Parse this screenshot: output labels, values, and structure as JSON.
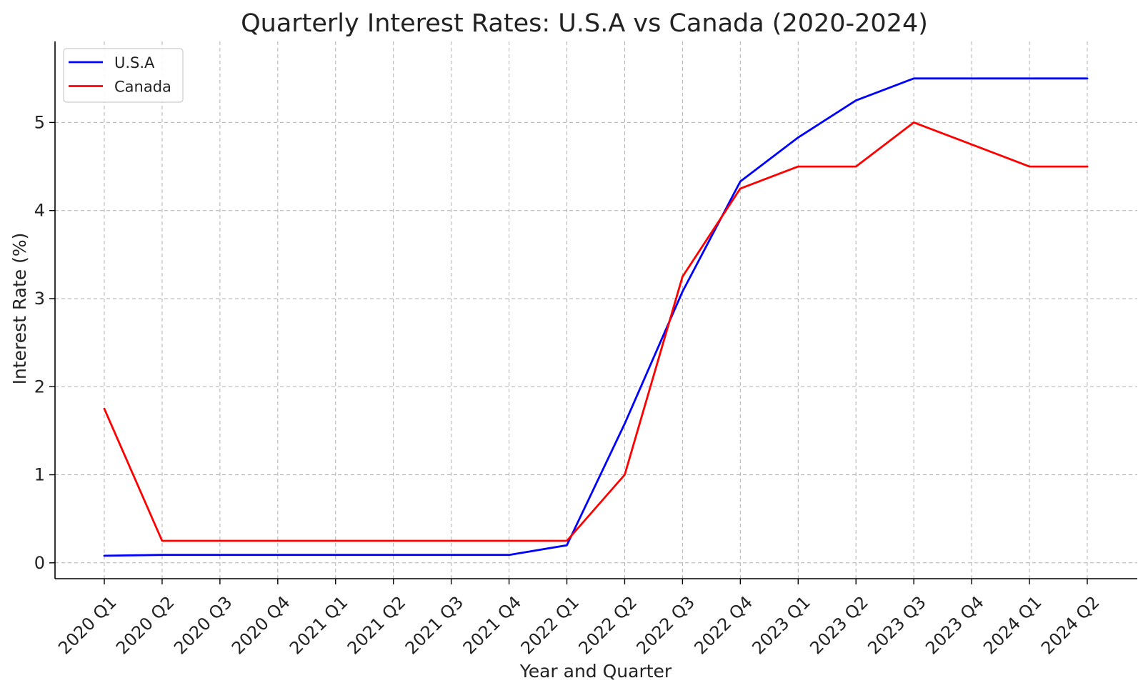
{
  "chart_data": {
    "type": "line",
    "title": "Quarterly Interest Rates: U.S.A vs Canada (2020-2024)",
    "xlabel": "Year and Quarter",
    "ylabel": "Interest Rate (%)",
    "categories": [
      "2020 Q1",
      "2020 Q2",
      "2020 Q3",
      "2020 Q4",
      "2021 Q1",
      "2021 Q2",
      "2021 Q3",
      "2021 Q4",
      "2022 Q1",
      "2022 Q2",
      "2022 Q3",
      "2022 Q4",
      "2023 Q1",
      "2023 Q2",
      "2023 Q3",
      "2023 Q4",
      "2024 Q1",
      "2024 Q2"
    ],
    "ylim": [
      -0.18,
      5.92
    ],
    "yticks": [
      0,
      1,
      2,
      3,
      4,
      5
    ],
    "grid": true,
    "legend_position": "upper-left",
    "series": [
      {
        "name": "U.S.A",
        "color": "#0000ff",
        "values": [
          0.08,
          0.09,
          0.09,
          0.09,
          0.09,
          0.09,
          0.09,
          0.09,
          0.2,
          1.58,
          3.08,
          4.33,
          4.83,
          5.25,
          5.5,
          5.5,
          5.5,
          5.5
        ]
      },
      {
        "name": "Canada",
        "color": "#ff0000",
        "values": [
          1.75,
          0.25,
          0.25,
          0.25,
          0.25,
          0.25,
          0.25,
          0.25,
          0.25,
          1.0,
          3.25,
          4.25,
          4.5,
          4.5,
          5.0,
          4.75,
          4.5,
          4.5
        ]
      }
    ]
  }
}
